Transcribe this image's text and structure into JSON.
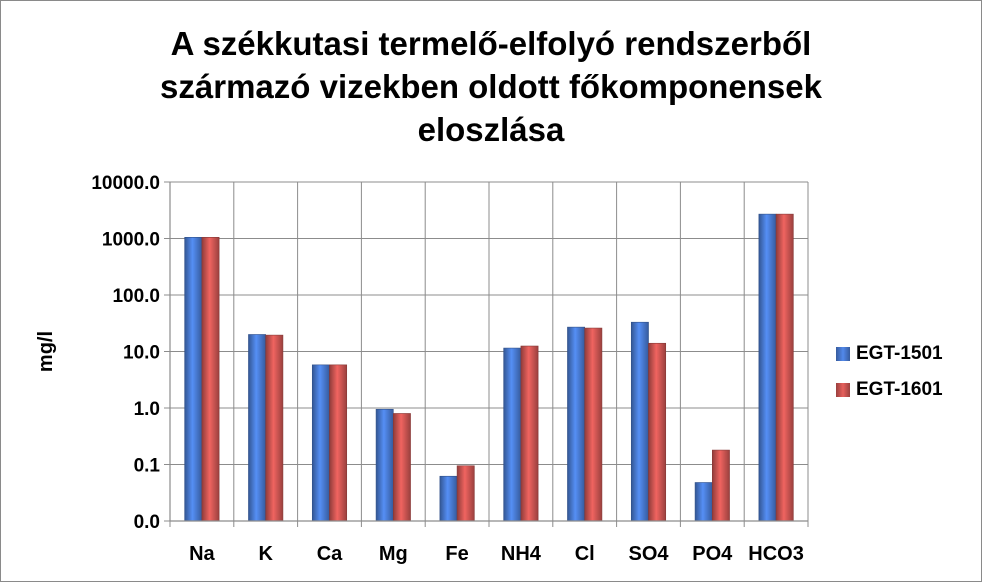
{
  "chart_data": {
    "type": "bar",
    "title_lines": [
      "A székkutasi termelő-elfolyó rendszerből",
      "származó  vizekben oldott főkomponensek",
      "eloszlása"
    ],
    "xlabel": "",
    "ylabel": "mg/l",
    "yscale": "log",
    "ylim": [
      0.01,
      10000
    ],
    "yticks": [
      0.01,
      0.1,
      1,
      10,
      100,
      1000,
      10000
    ],
    "ytick_labels": [
      "0.0",
      "0.1",
      "1.0",
      "10.0",
      "100.0",
      "1000.0",
      "10000.0"
    ],
    "categories": [
      "Na",
      "K",
      "Ca",
      "Mg",
      "Fe",
      "NH4",
      "Cl",
      "SO4",
      "PO4",
      "HCO3"
    ],
    "series": [
      {
        "name": "EGT-1501",
        "color": "#4472c4",
        "values": [
          1050,
          20,
          5.8,
          0.95,
          0.062,
          11.5,
          27,
          33,
          0.048,
          2700
        ]
      },
      {
        "name": "EGT-1601",
        "color": "#c0504d",
        "values": [
          1050,
          19.5,
          5.8,
          0.8,
          0.095,
          12.5,
          26,
          14,
          0.18,
          2700
        ]
      }
    ],
    "grid": true,
    "legend_position": "right"
  }
}
